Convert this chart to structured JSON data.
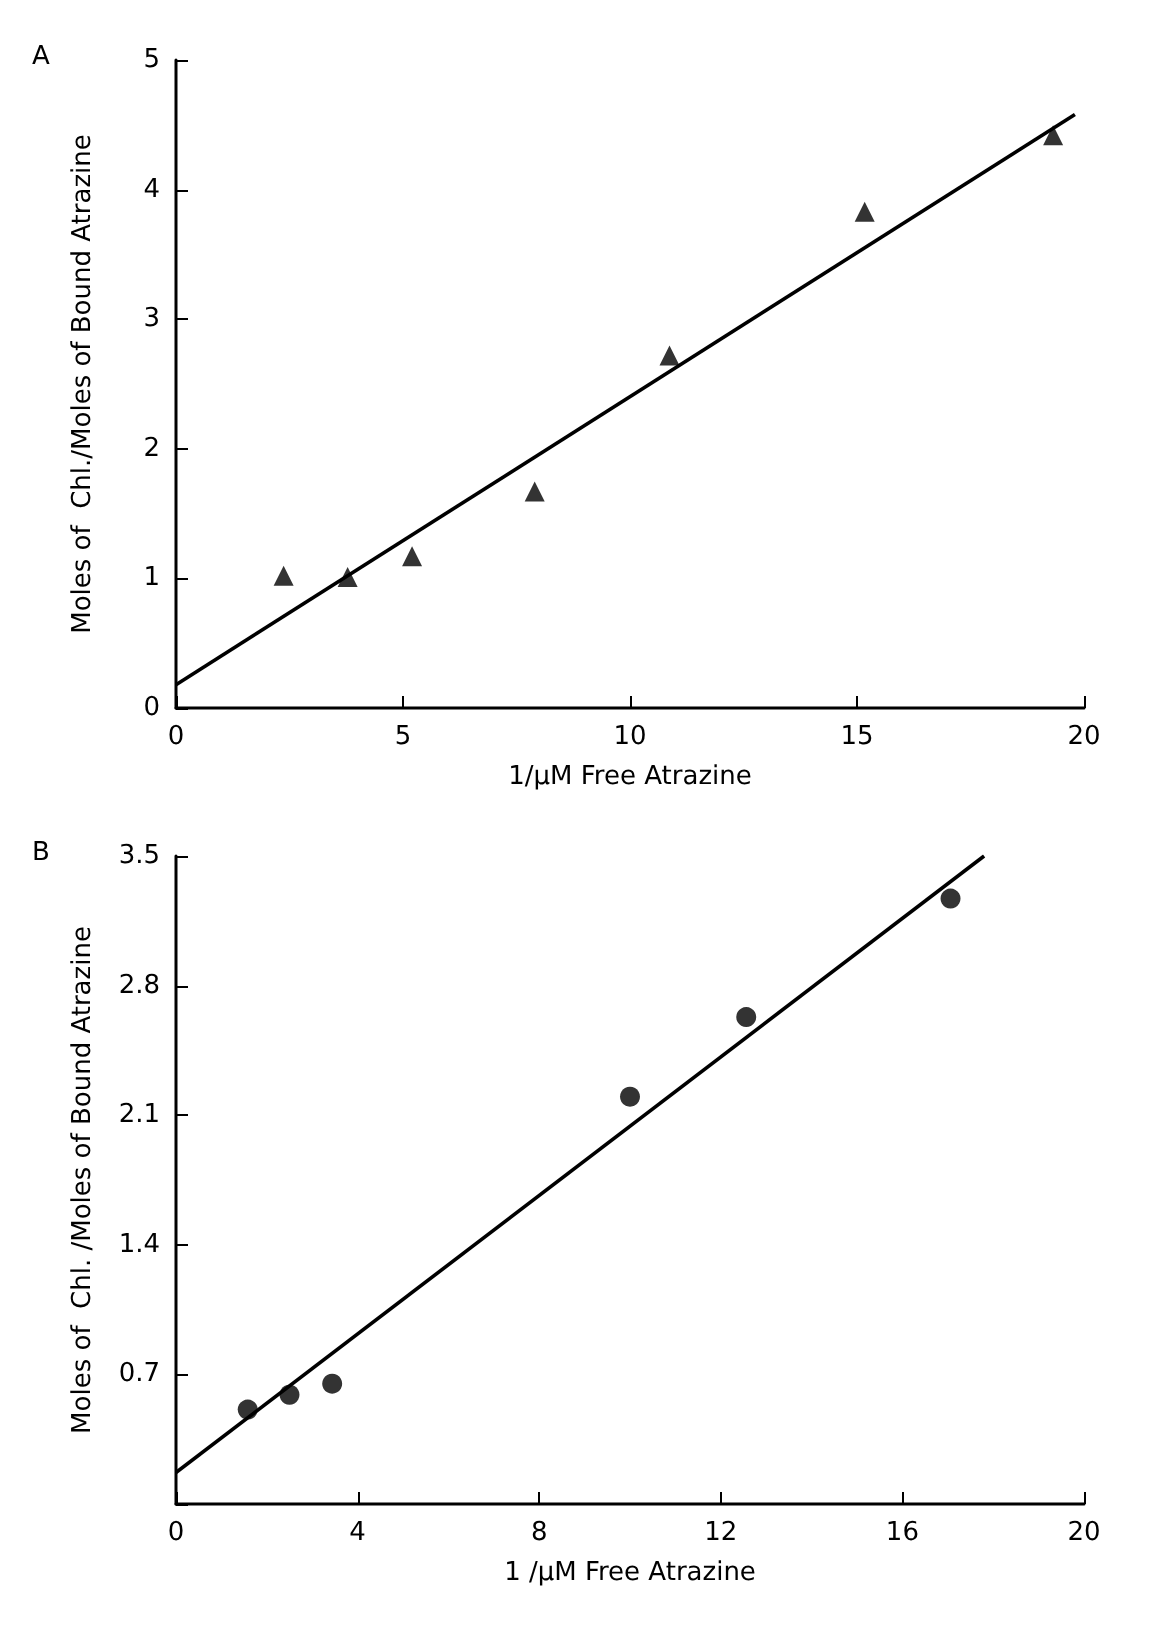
{
  "chart_data": [
    {
      "type": "scatter",
      "annotations": [
        "A"
      ],
      "xlabel": "1/μM Free Atrazine",
      "ylabel": "Moles of  Chl./Moles of Bound Atrazine",
      "xlim": [
        0,
        20
      ],
      "ylim": [
        0,
        5
      ],
      "xticks": [
        0,
        5,
        10,
        15,
        20
      ],
      "yticks": [
        0,
        1,
        2,
        3,
        4,
        5
      ],
      "grid": false,
      "series": [
        {
          "color": "#000000",
          "marker": "triangle",
          "x": [
            2.37,
            3.78,
            5.2,
            7.9,
            10.87,
            15.17,
            19.32
          ],
          "values": [
            1.02,
            1.01,
            1.17,
            1.67,
            2.72,
            3.83,
            4.42
          ]
        },
        {
          "type": "line",
          "marker": "none",
          "color": "#000000",
          "x": [
            0,
            19.8
          ],
          "values": [
            0.18,
            4.58
          ]
        }
      ]
    },
    {
      "type": "scatter",
      "annotations": [
        "B"
      ],
      "xlabel": "1 /μM Free Atrazine",
      "ylabel": "Moles of  Chl. /Moles of Bound Atrazine",
      "xlim": [
        0,
        20
      ],
      "ylim": [
        0,
        3.5
      ],
      "xticks": [
        0,
        4,
        8,
        12,
        16,
        20
      ],
      "yticks": [
        {
          "value": 0,
          "label": null
        },
        0.7,
        1.4,
        2.1,
        2.8,
        3.5
      ],
      "grid": false,
      "series": [
        {
          "color": "#000000",
          "marker": "circle",
          "x": [
            1.58,
            2.5,
            3.44,
            10.0,
            12.56,
            17.06
          ],
          "values": [
            0.51,
            0.59,
            0.65,
            2.2,
            2.63,
            3.27
          ]
        },
        {
          "type": "line",
          "marker": "none",
          "color": "#000000",
          "x": [
            0,
            17.8
          ],
          "values": [
            0.17,
            3.5
          ]
        }
      ]
    }
  ]
}
